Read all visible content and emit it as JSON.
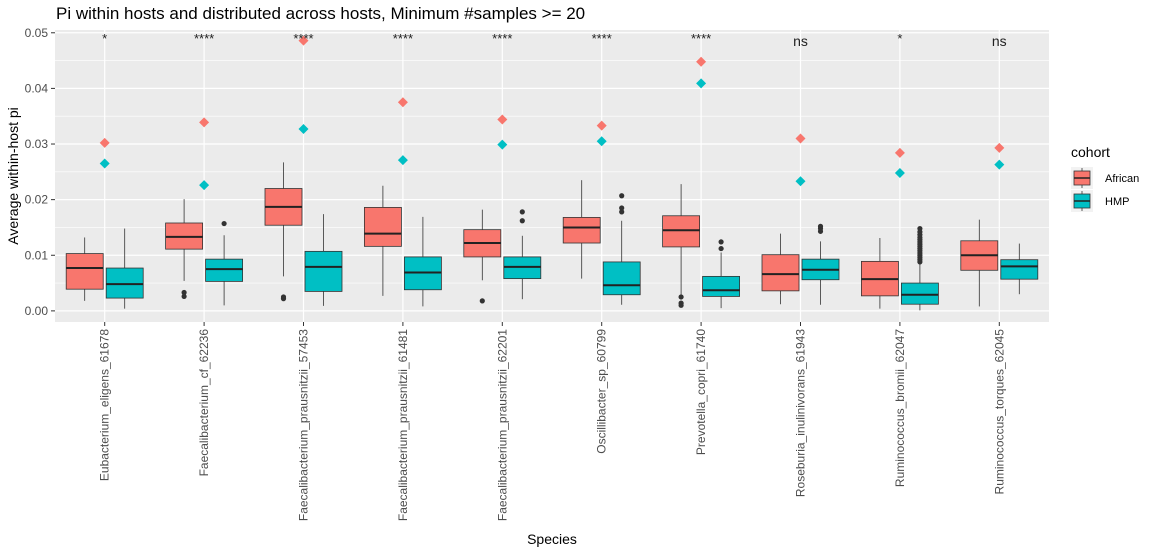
{
  "chart_data": {
    "type": "boxplot",
    "title": "Pi within hosts and distributed across hosts, Minimum #samples >= 20",
    "xlabel": "Species",
    "ylabel": "Average within-host pi",
    "ylim": [
      -0.002,
      0.0505
    ],
    "yticks": [
      0.0,
      0.01,
      0.02,
      0.03,
      0.04,
      0.05
    ],
    "ytick_labels": [
      "0.00",
      "0.01",
      "0.02",
      "0.03",
      "0.04",
      "0.05"
    ],
    "grid": true,
    "legend": {
      "title": "cohort",
      "position": "right"
    },
    "colors": {
      "African": "#F8766D",
      "HMP": "#00BFC4",
      "panel": "#EBEBEB",
      "grid": "#FFFFFF"
    },
    "categories": [
      "Eubacterium_eligens_61678",
      "Faecalibacterium_cf_62236",
      "Faecalibacterium_prausnitzii_57453",
      "Faecalibacterium_prausnitzii_61481",
      "Faecalibacterium_prausnitzii_62201",
      "Oscillibacter_sp_60799",
      "Prevotella_copri_61740",
      "Roseburia_inulinivorans_61943",
      "Ruminococcus_bromii_62047",
      "Ruminococcus_torques_62045"
    ],
    "significance": [
      "*",
      "****",
      "****",
      "****",
      "****",
      "****",
      "****",
      "ns",
      "*",
      "ns"
    ],
    "series": [
      {
        "name": "African",
        "boxes": [
          {
            "min": 0.0018,
            "q1": 0.0039,
            "median": 0.0077,
            "q3": 0.0103,
            "max": 0.0132,
            "outliers": []
          },
          {
            "min": 0.0054,
            "q1": 0.0111,
            "median": 0.0133,
            "q3": 0.0158,
            "max": 0.0201,
            "outliers": [
              0.0033,
              0.0026
            ]
          },
          {
            "min": 0.0062,
            "q1": 0.0154,
            "median": 0.0187,
            "q3": 0.022,
            "max": 0.0267,
            "outliers": [
              0.0025,
              0.0022
            ]
          },
          {
            "min": 0.0027,
            "q1": 0.0116,
            "median": 0.0139,
            "q3": 0.0186,
            "max": 0.0225,
            "outliers": []
          },
          {
            "min": 0.0055,
            "q1": 0.0097,
            "median": 0.0122,
            "q3": 0.0146,
            "max": 0.0182,
            "outliers": [
              0.0018
            ]
          },
          {
            "min": 0.0058,
            "q1": 0.0122,
            "median": 0.015,
            "q3": 0.0168,
            "max": 0.0235,
            "outliers": []
          },
          {
            "min": 0.0028,
            "q1": 0.0115,
            "median": 0.0145,
            "q3": 0.0171,
            "max": 0.0228,
            "outliers": [
              0.0025,
              0.0014,
              0.001
            ]
          },
          {
            "min": 0.0012,
            "q1": 0.0036,
            "median": 0.0066,
            "q3": 0.0101,
            "max": 0.0139,
            "outliers": []
          },
          {
            "min": 0.0004,
            "q1": 0.0027,
            "median": 0.0057,
            "q3": 0.0089,
            "max": 0.0131,
            "outliers": []
          },
          {
            "min": 0.0008,
            "q1": 0.0073,
            "median": 0.01,
            "q3": 0.0126,
            "max": 0.0164,
            "outliers": []
          }
        ],
        "means": [
          0.0302,
          0.0339,
          0.0486,
          0.0375,
          0.0344,
          0.0333,
          0.0448,
          0.031,
          0.0284,
          0.0293
        ]
      },
      {
        "name": "HMP",
        "boxes": [
          {
            "min": 0.0004,
            "q1": 0.0023,
            "median": 0.0048,
            "q3": 0.0077,
            "max": 0.0148,
            "outliers": []
          },
          {
            "min": 0.001,
            "q1": 0.0053,
            "median": 0.0075,
            "q3": 0.0093,
            "max": 0.0136,
            "outliers": [
              0.0157
            ]
          },
          {
            "min": 0.0009,
            "q1": 0.0035,
            "median": 0.0079,
            "q3": 0.0107,
            "max": 0.0174,
            "outliers": []
          },
          {
            "min": 0.0008,
            "q1": 0.0038,
            "median": 0.0069,
            "q3": 0.0097,
            "max": 0.0169,
            "outliers": []
          },
          {
            "min": 0.0021,
            "q1": 0.0058,
            "median": 0.0079,
            "q3": 0.0097,
            "max": 0.0135,
            "outliers": [
              0.0162,
              0.0178
            ]
          },
          {
            "min": 0.0011,
            "q1": 0.0029,
            "median": 0.0046,
            "q3": 0.0088,
            "max": 0.0162,
            "outliers": [
              0.0178,
              0.0185,
              0.0207
            ]
          },
          {
            "min": 0.0005,
            "q1": 0.0026,
            "median": 0.0037,
            "q3": 0.0062,
            "max": 0.0105,
            "outliers": [
              0.0112,
              0.0124
            ]
          },
          {
            "min": 0.0011,
            "q1": 0.0056,
            "median": 0.0074,
            "q3": 0.0093,
            "max": 0.0125,
            "outliers": [
              0.0143,
              0.0148,
              0.0152
            ]
          },
          {
            "min": 0.0001,
            "q1": 0.0012,
            "median": 0.0029,
            "q3": 0.005,
            "max": 0.0085,
            "outliers": [
              0.0088,
              0.0092,
              0.0096,
              0.01,
              0.0104,
              0.0108,
              0.0112,
              0.0116,
              0.012,
              0.0124,
              0.0128,
              0.0132,
              0.0137,
              0.0142,
              0.0148
            ]
          },
          {
            "min": 0.003,
            "q1": 0.0057,
            "median": 0.008,
            "q3": 0.0092,
            "max": 0.0121,
            "outliers": []
          }
        ],
        "means": [
          0.0265,
          0.0226,
          0.0327,
          0.0271,
          0.0299,
          0.0305,
          0.0409,
          0.0233,
          0.0248,
          0.0263
        ]
      }
    ]
  }
}
